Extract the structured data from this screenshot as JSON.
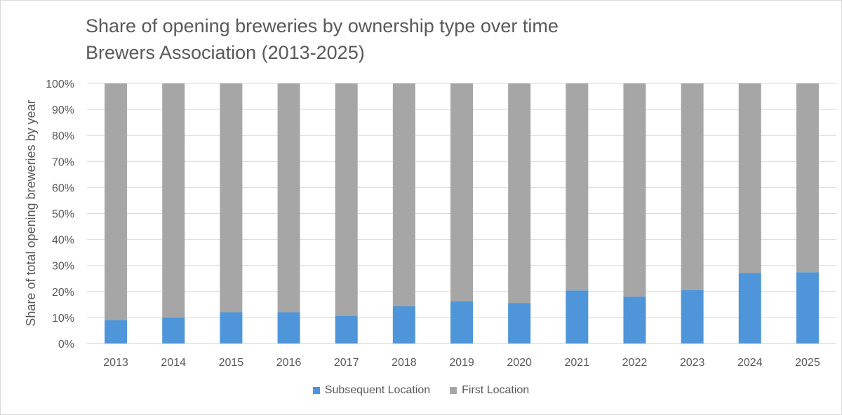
{
  "chart_data": {
    "type": "bar",
    "stacked": true,
    "title": "Share of opening breweries by ownership type over time",
    "subtitle": "Brewers Association (2013-2025)",
    "xlabel": "",
    "ylabel": "Share of total opening breweries by year",
    "ylim": [
      0,
      100
    ],
    "yticks": [
      "0%",
      "10%",
      "20%",
      "30%",
      "40%",
      "50%",
      "60%",
      "70%",
      "80%",
      "90%",
      "100%"
    ],
    "categories": [
      "2013",
      "2014",
      "2015",
      "2016",
      "2017",
      "2018",
      "2019",
      "2020",
      "2021",
      "2022",
      "2023",
      "2024",
      "2025"
    ],
    "series": [
      {
        "name": "Subsequent Location",
        "color": "#4e95d9",
        "values": [
          9,
          10,
          12,
          12,
          10.7,
          14.3,
          16.2,
          15.6,
          20.4,
          18,
          20.5,
          27.1,
          27.4
        ]
      },
      {
        "name": "First Location",
        "color": "#a6a6a6",
        "values": [
          91,
          90,
          88,
          88,
          89.3,
          85.7,
          83.8,
          84.4,
          79.6,
          82,
          79.5,
          72.9,
          72.6
        ]
      }
    ],
    "grid": true,
    "legend": "bottom"
  }
}
